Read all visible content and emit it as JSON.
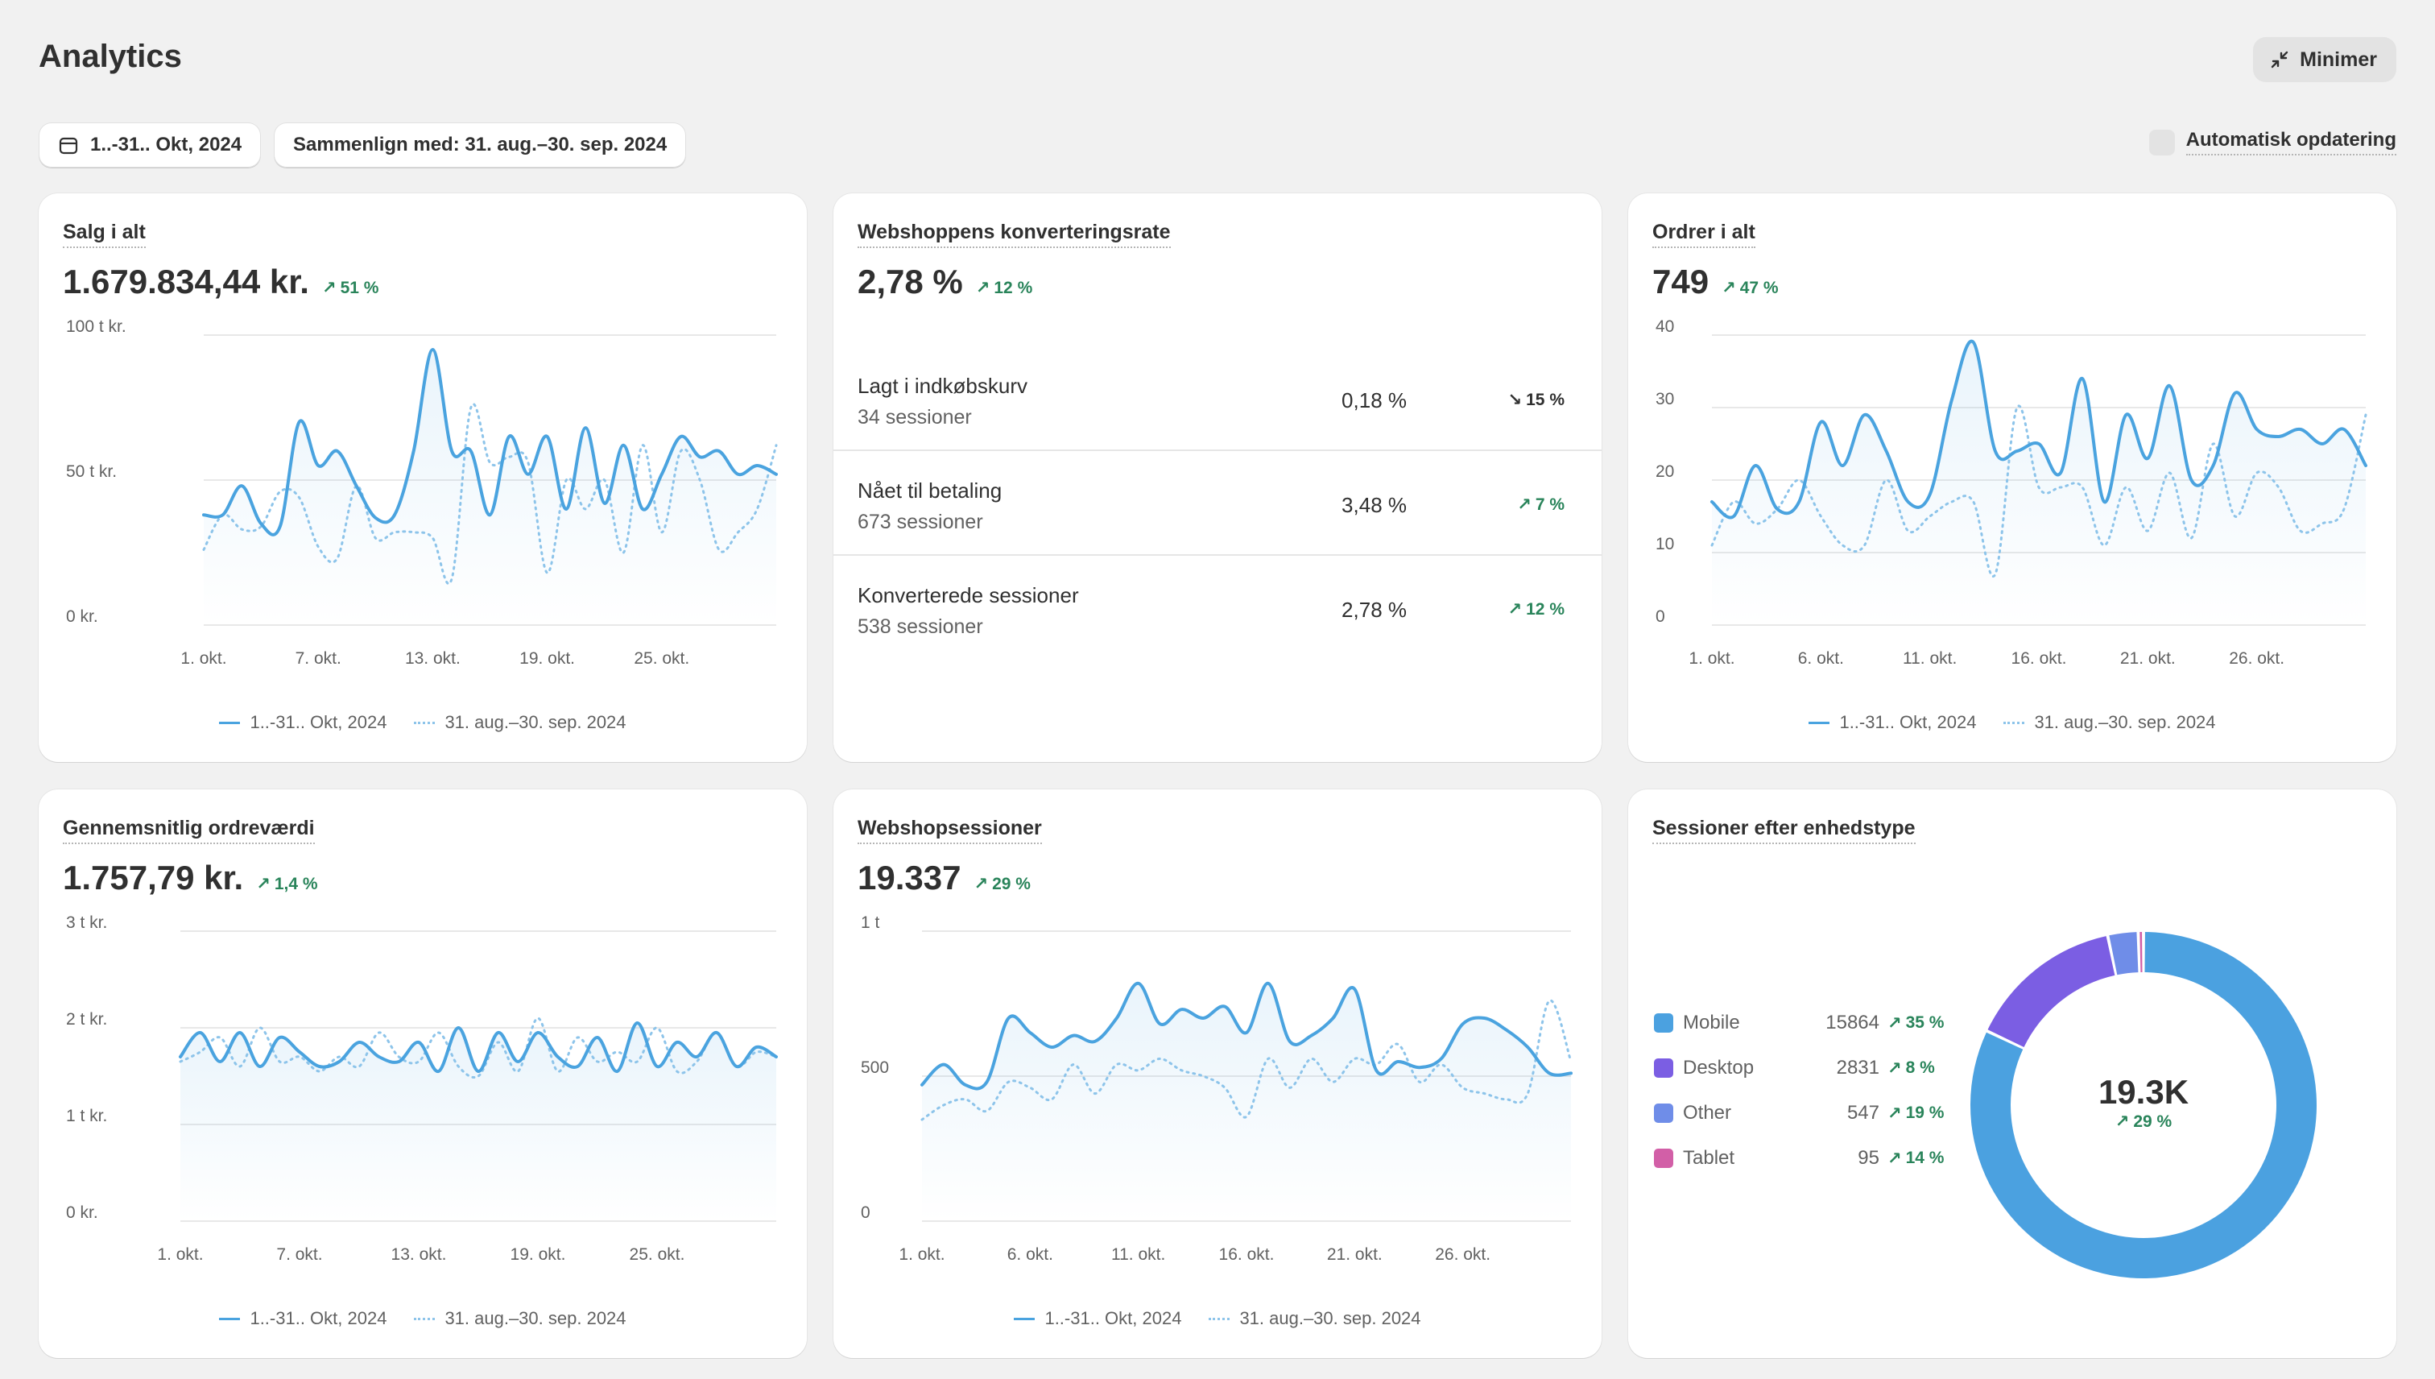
{
  "header": {
    "title": "Analytics",
    "minimize_label": "Minimer",
    "date_range_label": "1..-31.. Okt, 2024",
    "compare_label": "Sammenlign med: 31. aug.–30. sep. 2024",
    "auto_refresh_label": "Automatisk opdatering"
  },
  "colors": {
    "current_line": "#4aa3df",
    "previous_line": "#8dc4ea",
    "positive": "#29845a",
    "mobile": "#4ba1e0",
    "desktop": "#7b5ee3",
    "other": "#6f8de8",
    "tablet": "#d25fa7"
  },
  "legend": {
    "current": "1..-31.. Okt, 2024",
    "previous": "31. aug.–30. sep. 2024"
  },
  "cards": {
    "sales": {
      "title": "Salg i alt",
      "value": "1.679.834,44 kr.",
      "delta": "51 %",
      "delta_direction": "up",
      "chart_data": {
        "type": "line",
        "y_ticks": [
          "100 t kr.",
          "50 t kr.",
          "0 kr."
        ],
        "ylim": [
          0,
          100000
        ],
        "x_ticks": [
          "1. okt.",
          "7. okt.",
          "13. okt.",
          "19. okt.",
          "25. okt."
        ],
        "x_tick_days": [
          1,
          7,
          13,
          19,
          25
        ],
        "days": 31,
        "series": [
          {
            "name": "1..-31.. Okt, 2024",
            "style": "solid",
            "values": [
              38000,
              38000,
              48000,
              35000,
              34000,
              70000,
              55000,
              60000,
              48000,
              37000,
              38000,
              60000,
              95000,
              60000,
              60000,
              38000,
              65000,
              52000,
              65000,
              40000,
              68000,
              42000,
              62000,
              40000,
              52000,
              65000,
              58000,
              60000,
              52000,
              55000,
              52000
            ]
          },
          {
            "name": "31. aug.–30. sep. 2024",
            "style": "dotted",
            "values": [
              26000,
              38000,
              33000,
              34000,
              46000,
              44000,
              27000,
              23000,
              48000,
              30000,
              32000,
              32000,
              30000,
              16000,
              75000,
              56000,
              58000,
              56000,
              18000,
              50000,
              40000,
              50000,
              25000,
              62000,
              32000,
              60000,
              50000,
              26000,
              32000,
              40000,
              62000
            ]
          }
        ]
      }
    },
    "conversion": {
      "title": "Webshoppens konverteringsrate",
      "value": "2,78 %",
      "delta": "12 %",
      "delta_direction": "up",
      "rows": [
        {
          "name": "Lagt i indkøbskurv",
          "sessions": "34 sessioner",
          "pct": "0,18 %",
          "delta": "15 %",
          "direction": "down"
        },
        {
          "name": "Nået til betaling",
          "sessions": "673 sessioner",
          "pct": "3,48 %",
          "delta": "7 %",
          "direction": "up"
        },
        {
          "name": "Konverterede sessioner",
          "sessions": "538 sessioner",
          "pct": "2,78 %",
          "delta": "12 %",
          "direction": "up"
        }
      ]
    },
    "orders": {
      "title": "Ordrer i alt",
      "value": "749",
      "delta": "47 %",
      "delta_direction": "up",
      "chart_data": {
        "type": "line",
        "y_ticks": [
          "40",
          "30",
          "20",
          "10",
          "0"
        ],
        "ylim": [
          0,
          40
        ],
        "x_ticks": [
          "1. okt.",
          "6. okt.",
          "11. okt.",
          "16. okt.",
          "21. okt.",
          "26. okt."
        ],
        "x_tick_days": [
          1,
          6,
          11,
          16,
          21,
          26
        ],
        "days": 31,
        "series": [
          {
            "name": "1..-31.. Okt, 2024",
            "style": "solid",
            "values": [
              17,
              15,
              22,
              16,
              17,
              28,
              22,
              29,
              24,
              17,
              18,
              31,
              39,
              24,
              24,
              25,
              21,
              34,
              17,
              29,
              23,
              33,
              20,
              22,
              32,
              27,
              26,
              27,
              25,
              27,
              22
            ]
          },
          {
            "name": "31. aug.–30. sep. 2024",
            "style": "dotted",
            "values": [
              11,
              17,
              14,
              16,
              20,
              15,
              11,
              11,
              20,
              13,
              15,
              17,
              17,
              7,
              30,
              19,
              19,
              19,
              11,
              19,
              13,
              21,
              12,
              25,
              15,
              21,
              19,
              13,
              14,
              16,
              29
            ]
          }
        ]
      }
    },
    "aov": {
      "title": "Gennemsnitlig ordreværdi",
      "value": "1.757,79 kr.",
      "delta": "1,4 %",
      "delta_direction": "up",
      "chart_data": {
        "type": "line",
        "y_ticks": [
          "3 t kr.",
          "2 t kr.",
          "1 t kr.",
          "0 kr."
        ],
        "ylim": [
          0,
          3000
        ],
        "x_ticks": [
          "1. okt.",
          "7. okt.",
          "13. okt.",
          "19. okt.",
          "25. okt."
        ],
        "x_tick_days": [
          1,
          7,
          13,
          19,
          25
        ],
        "days": 31,
        "series": [
          {
            "name": "1..-31.. Okt, 2024",
            "style": "solid",
            "values": [
              1700,
              1950,
              1650,
              1950,
              1600,
              1900,
              1750,
              1600,
              1650,
              1850,
              1700,
              1650,
              1850,
              1550,
              2000,
              1550,
              1950,
              1650,
              1950,
              1700,
              1600,
              1900,
              1550,
              2050,
              1600,
              1850,
              1700,
              1950,
              1600,
              1800,
              1700
            ]
          },
          {
            "name": "31. aug.–30. sep. 2024",
            "style": "dotted",
            "values": [
              1650,
              1750,
              1900,
              1600,
              2000,
              1650,
              1700,
              1550,
              1700,
              1600,
              1950,
              1700,
              1650,
              1950,
              1600,
              1500,
              1850,
              1550,
              2100,
              1550,
              1900,
              1650,
              1750,
              1650,
              2000,
              1550,
              1650,
              1950,
              1600,
              1750,
              1700
            ]
          }
        ]
      }
    },
    "sessions": {
      "title": "Webshopsessioner",
      "value": "19.337",
      "delta": "29 %",
      "delta_direction": "up",
      "chart_data": {
        "type": "line",
        "y_ticks": [
          "1 t",
          "500",
          "0"
        ],
        "ylim": [
          0,
          1000
        ],
        "x_ticks": [
          "1. okt.",
          "6. okt.",
          "11. okt.",
          "16. okt.",
          "21. okt.",
          "26. okt."
        ],
        "x_tick_days": [
          1,
          6,
          11,
          16,
          21,
          26
        ],
        "days": 31,
        "series": [
          {
            "name": "1..-31.. Okt, 2024",
            "style": "solid",
            "values": [
              470,
              540,
              470,
              480,
              700,
              650,
              600,
              640,
              620,
              700,
              820,
              680,
              730,
              700,
              740,
              650,
              820,
              620,
              640,
              700,
              800,
              520,
              550,
              530,
              560,
              680,
              700,
              660,
              600,
              510,
              510
            ]
          },
          {
            "name": "31. aug.–30. sep. 2024",
            "style": "dotted",
            "values": [
              350,
              400,
              420,
              380,
              480,
              460,
              420,
              540,
              440,
              540,
              520,
              560,
              520,
              500,
              460,
              360,
              560,
              460,
              560,
              480,
              560,
              540,
              610,
              480,
              540,
              460,
              440,
              420,
              440,
              760,
              550
            ]
          }
        ]
      }
    },
    "devices": {
      "title": "Sessioner efter enhedstype",
      "total": "19.3K",
      "total_delta": "29 %",
      "chart_data": {
        "type": "pie",
        "series": [
          {
            "name": "Mobile",
            "value": 15864,
            "label": "15864",
            "delta": "35 %",
            "color": "#4ba1e0"
          },
          {
            "name": "Desktop",
            "value": 2831,
            "label": "2831",
            "delta": "8 %",
            "color": "#7b5ee3"
          },
          {
            "name": "Other",
            "value": 547,
            "label": "547",
            "delta": "19 %",
            "color": "#6f8de8"
          },
          {
            "name": "Tablet",
            "value": 95,
            "label": "95",
            "delta": "14 %",
            "color": "#d25fa7"
          }
        ]
      }
    }
  }
}
